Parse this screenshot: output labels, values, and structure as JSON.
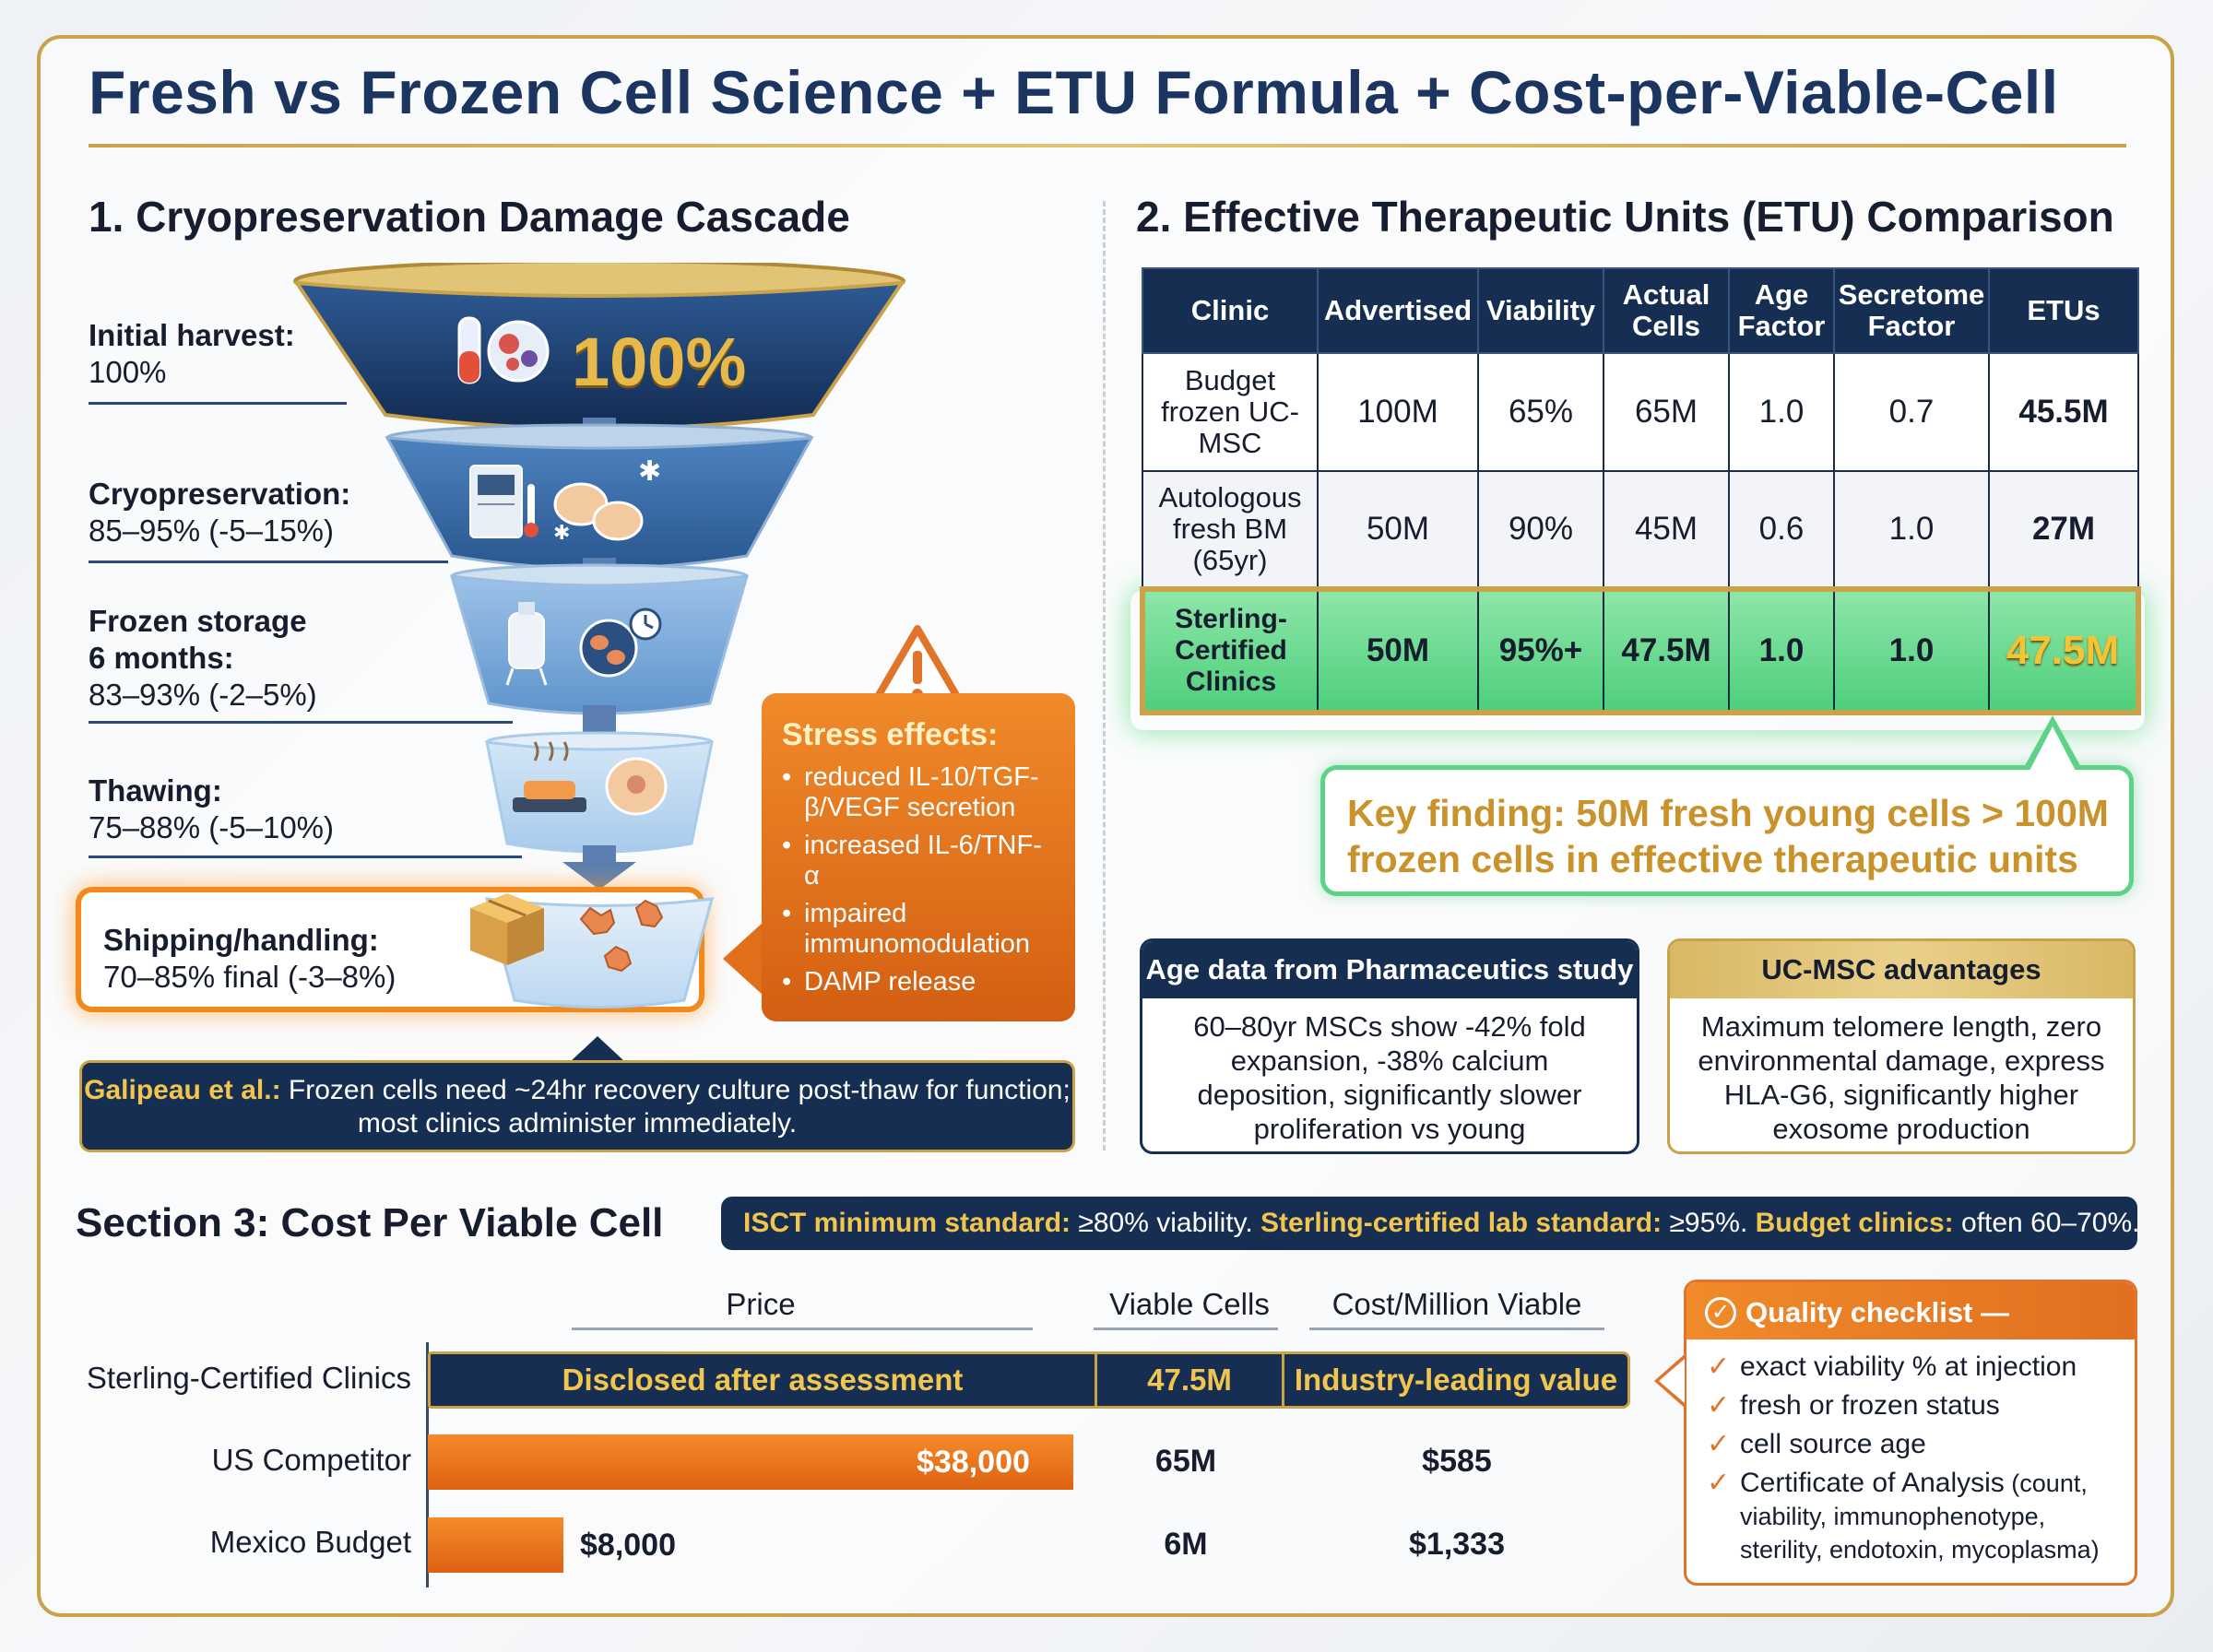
{
  "title": "Fresh vs Frozen Cell Science + ETU Formula + Cost-per-Viable-Cell",
  "section1": {
    "title": "1. Cryopreservation Damage Cascade",
    "funnel_percent": "100%",
    "stages": [
      {
        "name": "Initial harvest:",
        "value": "100%"
      },
      {
        "name": "Cryopreservation:",
        "value": "85–95% (-5–15%)"
      },
      {
        "name": "Frozen storage",
        "name2": "6 months:",
        "value": "83–93% (-2–5%)"
      },
      {
        "name": "Thawing:",
        "value": "75–88% (-5–10%)"
      },
      {
        "name": "Shipping/handling:",
        "value": "70–85% final (-3–8%)"
      }
    ],
    "stress": {
      "title": "Stress effects:",
      "items": [
        "reduced IL-10/TGF-β/VEGF secretion",
        "increased IL-6/TNF-α",
        "impaired immunomodulation",
        "DAMP release"
      ]
    },
    "note": {
      "highlight": "Galipeau et al.:",
      "text": " Frozen cells need ~24hr recovery culture post-thaw for function; most clinics administer immediately."
    }
  },
  "section2": {
    "title": "2. Effective Therapeutic Units (ETU) Comparison",
    "columns": [
      "Clinic",
      "Advertised",
      "Viability",
      "Actual Cells",
      "Age Factor",
      "Secretome Factor",
      "ETUs"
    ],
    "rows": [
      {
        "clinic": "Budget frozen UC-MSC",
        "advertised": "100M",
        "viability": "65%",
        "actual": "65M",
        "age": "1.0",
        "secretome": "0.7",
        "etu": "45.5M"
      },
      {
        "clinic": "Autologous fresh BM (65yr)",
        "advertised": "50M",
        "viability": "90%",
        "actual": "45M",
        "age": "0.6",
        "secretome": "1.0",
        "etu": "27M"
      },
      {
        "clinic": "Sterling-Certified Clinics",
        "advertised": "50M",
        "viability": "95%+",
        "actual": "47.5M",
        "age": "1.0",
        "secretome": "1.0",
        "etu": "47.5M"
      }
    ],
    "key_finding": "Key finding: 50M fresh young cells > 100M frozen cells in effective therapeutic units",
    "age_card": {
      "title": "Age data from Pharmaceutics study",
      "body": "60–80yr MSCs show -42% fold expansion, -38% calcium deposition, significantly slower proliferation vs young"
    },
    "uc_card": {
      "title": "UC-MSC advantages",
      "body": "Maximum telomere length, zero environmental damage, express HLA-G6, significantly higher exosome production"
    }
  },
  "section3": {
    "title": "Section 3: Cost Per Viable Cell",
    "standard": {
      "p1_hl": "ISCT minimum standard:",
      "p1": " ≥80% viability. ",
      "p2_hl": "Sterling-certified lab standard:",
      "p2": " ≥95%. ",
      "p3_hl": "Budget clinics:",
      "p3": " often 60–70%."
    },
    "columns": {
      "price": "Price",
      "viable": "Viable Cells",
      "cost": "Cost/Million Viable"
    },
    "rows": [
      {
        "label": "Sterling-Certified Clinics",
        "price": "Disclosed after assessment",
        "viable": "47.5M",
        "cost": "Industry-leading value"
      },
      {
        "label": "US Competitor",
        "price": "$38,000",
        "price_value": 38000,
        "viable": "65M",
        "cost": "$585"
      },
      {
        "label": "Mexico Budget",
        "price": "$8,000",
        "price_value": 8000,
        "viable": "6M",
        "cost": "$1,333"
      }
    ],
    "checklist": {
      "title": "Quality checklist —",
      "items": [
        {
          "text": "exact viability % at injection",
          "small": ""
        },
        {
          "text": "fresh or frozen status",
          "small": ""
        },
        {
          "text": "cell source age",
          "small": ""
        },
        {
          "text": "Certificate of Analysis",
          "small": " (count, viability, immunophenotype, sterility, endotoxin, mycoplasma)"
        }
      ]
    }
  },
  "colors": {
    "navy": "#152e52",
    "gold": "#c9a24a",
    "orange": "#e0752a",
    "green": "#4fcf7c"
  }
}
